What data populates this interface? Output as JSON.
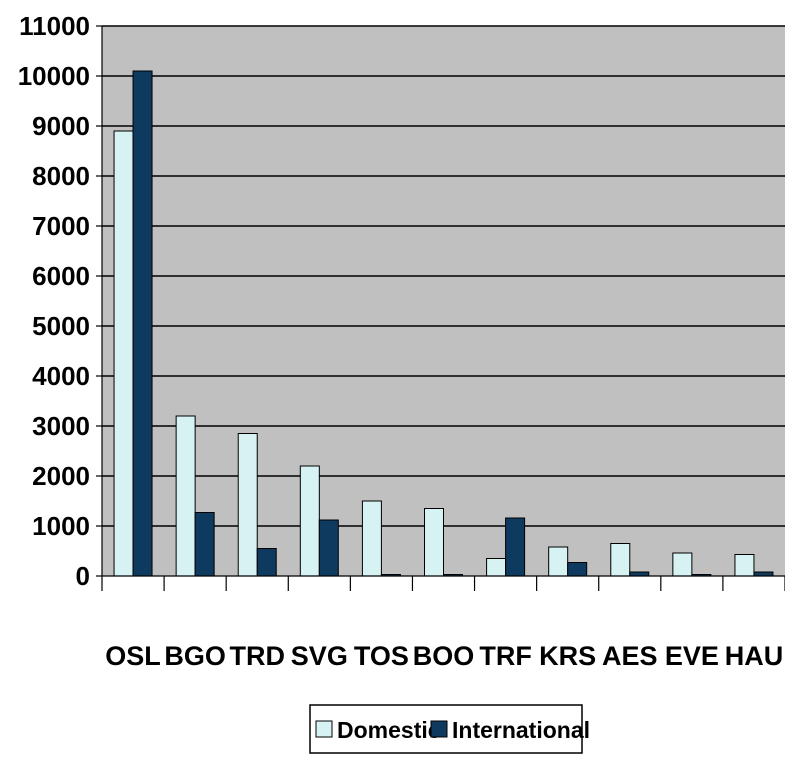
{
  "chart_data": {
    "type": "bar",
    "title": "",
    "xlabel": "",
    "ylabel": "",
    "categories": [
      "OSL",
      "BGO",
      "TRD",
      "SVG",
      "TOS",
      "BOO",
      "TRF",
      "KRS",
      "AES",
      "EVE",
      "HAU"
    ],
    "series": [
      {
        "name": "Domestic",
        "values": [
          8900,
          3200,
          2850,
          2200,
          1500,
          1350,
          350,
          580,
          650,
          460,
          430
        ],
        "color": "#d6f2f2"
      },
      {
        "name": "International",
        "values": [
          10100,
          1270,
          550,
          1120,
          30,
          30,
          1160,
          270,
          80,
          30,
          80
        ],
        "color": "#0e3a60"
      }
    ],
    "ylim": [
      0,
      11000
    ],
    "yticks": [
      0,
      1000,
      2000,
      3000,
      4000,
      5000,
      6000,
      7000,
      8000,
      9000,
      10000,
      11000
    ],
    "grid": true,
    "legend": "bottom",
    "colors": {
      "plot_background": "#c0c0c0",
      "gridline": "#000000",
      "bar_outline": "#000000"
    }
  }
}
